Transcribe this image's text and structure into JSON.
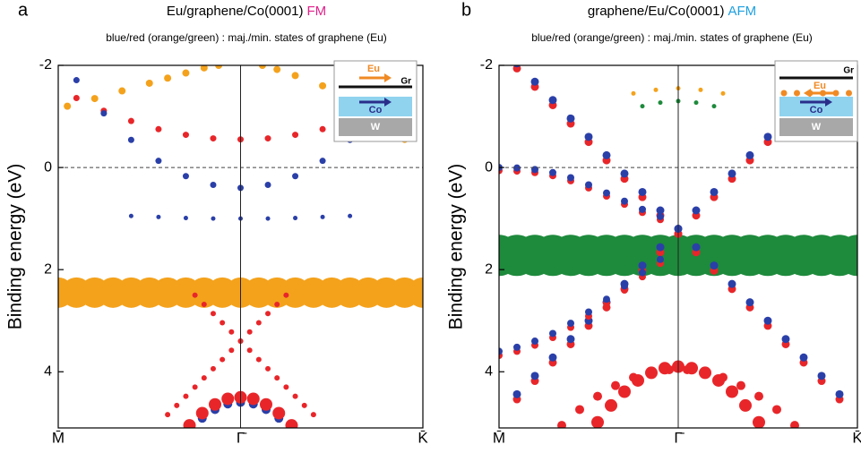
{
  "chart_data": [
    {
      "type": "scatter",
      "panel_label": "a",
      "title": "Eu/graphene/Co(0001)",
      "title_tag": "FM",
      "title_tag_color": "#e0208a",
      "subtitle": "blue/red (orange/green) : maj./min. states of graphene (Eu)",
      "y_label": "Binding energy (eV)",
      "ylim": [
        -2,
        5.1
      ],
      "yticks": [
        -2,
        0,
        2,
        4
      ],
      "y_inverted": true,
      "zero_line": true,
      "xlim": [
        0,
        2
      ],
      "xticks": [
        {
          "value": 0,
          "label": "M̄"
        },
        {
          "value": 1,
          "label": "Γ̄"
        },
        {
          "value": 2,
          "label": "K̄"
        }
      ],
      "inset": {
        "eu": "Eu",
        "gr": "Gr",
        "co": "Co",
        "w": "W"
      },
      "series": [
        {
          "color": "#f4a21c",
          "size": 17,
          "x": [
            0,
            0.1,
            0.2,
            0.3,
            0.4,
            0.5,
            0.6,
            0.7,
            0.8,
            0.9,
            1.0,
            1.1,
            1.2,
            1.3,
            1.4,
            1.5,
            1.6,
            1.7,
            1.8,
            1.9,
            2.0
          ],
          "values": [
            2.45,
            2.45,
            2.45,
            2.45,
            2.45,
            2.45,
            2.45,
            2.45,
            2.45,
            2.45,
            2.45,
            2.45,
            2.45,
            2.45,
            2.45,
            2.45,
            2.45,
            2.45,
            2.45,
            2.45,
            2.45
          ]
        },
        {
          "color": "#f4a21c",
          "size": 4,
          "x": [
            0.05,
            0.2,
            0.35,
            0.5,
            0.6,
            0.7,
            0.8,
            0.88
          ],
          "values": [
            -1.2,
            -1.35,
            -1.5,
            -1.65,
            -1.75,
            -1.85,
            -1.95,
            -2.0
          ]
        },
        {
          "color": "#f4a21c",
          "size": 4,
          "x": [
            1.12,
            1.2,
            1.3,
            1.45,
            1.6,
            1.75,
            1.9
          ],
          "values": [
            -2.0,
            -1.92,
            -1.8,
            -1.6,
            -1.3,
            -0.95,
            -0.55
          ]
        },
        {
          "color": "#e8262a",
          "size": 3.5,
          "x": [
            0.1,
            0.25,
            0.4,
            0.55,
            0.7,
            0.85,
            1.0,
            1.15,
            1.3,
            1.45,
            1.6,
            1.75,
            1.9
          ],
          "values": [
            -1.36,
            -1.11,
            -0.91,
            -0.75,
            -0.64,
            -0.57,
            -0.55,
            -0.57,
            -0.64,
            -0.75,
            -0.91,
            -1.11,
            -1.36
          ]
        },
        {
          "color": "#2a3fa8",
          "size": 3.5,
          "x": [
            0.1,
            0.25,
            0.4,
            0.55,
            0.7,
            0.85,
            1.0,
            1.15,
            1.3,
            1.45,
            1.6,
            1.75,
            1.9
          ],
          "values": [
            -1.71,
            -1.06,
            -0.54,
            -0.13,
            0.17,
            0.34,
            0.4,
            0.34,
            0.17,
            -0.13,
            -0.54,
            -1.06,
            -1.71
          ]
        },
        {
          "color": "#2a3fa8",
          "size": 2.5,
          "x": [
            0.4,
            0.55,
            0.7,
            0.85,
            1.0,
            1.15,
            1.3,
            1.45,
            1.6
          ],
          "values": [
            0.95,
            0.97,
            0.99,
            1.0,
            1.0,
            1.0,
            0.99,
            0.97,
            0.95
          ]
        },
        {
          "color": "#e8262a",
          "size": 3,
          "x": [
            0.75,
            0.8,
            0.85,
            0.9,
            0.95,
            1.0,
            1.05,
            1.1,
            1.15,
            1.2,
            1.25,
            1.3,
            1.35,
            1.4
          ],
          "values": [
            2.5,
            2.68,
            2.86,
            3.04,
            3.22,
            3.4,
            3.58,
            3.76,
            3.94,
            4.12,
            4.3,
            4.48,
            4.66,
            4.84
          ]
        },
        {
          "color": "#e8262a",
          "size": 3,
          "x": [
            0.6,
            0.65,
            0.7,
            0.75,
            0.8,
            0.85,
            0.9,
            0.95,
            1.0,
            1.05,
            1.1,
            1.15,
            1.2,
            1.25
          ],
          "values": [
            4.84,
            4.66,
            4.48,
            4.3,
            4.12,
            3.94,
            3.76,
            3.58,
            3.4,
            3.22,
            3.04,
            2.86,
            2.68,
            2.5
          ]
        },
        {
          "color": "#2a3fa8",
          "size": 5,
          "x": [
            0.79,
            0.86,
            0.93,
            1.0,
            1.07,
            1.14,
            1.21
          ],
          "values": [
            4.91,
            4.74,
            4.63,
            4.6,
            4.63,
            4.74,
            4.91
          ]
        },
        {
          "color": "#e8262a",
          "size": 7,
          "x": [
            0.72,
            0.79,
            0.86,
            0.93,
            1.0,
            1.07,
            1.14,
            1.21,
            1.28
          ],
          "values": [
            5.05,
            4.81,
            4.64,
            4.53,
            4.5,
            4.53,
            4.64,
            4.81,
            5.05
          ]
        }
      ]
    },
    {
      "type": "scatter",
      "panel_label": "b",
      "title": "graphene/Eu/Co(0001)",
      "title_tag": "AFM",
      "title_tag_color": "#1ea0e0",
      "subtitle": "blue/red (orange/green) : maj./min. states of graphene (Eu)",
      "y_label": "Binding energy (eV)",
      "ylim": [
        -2,
        5.1
      ],
      "yticks": [
        -2,
        0,
        2,
        4
      ],
      "y_inverted": true,
      "zero_line": true,
      "xlim": [
        0,
        2
      ],
      "xticks": [
        {
          "value": 0,
          "label": "M̄"
        },
        {
          "value": 1,
          "label": "Γ̄"
        },
        {
          "value": 2,
          "label": "K̄"
        }
      ],
      "inset": {
        "eu": "Eu",
        "gr": "Gr",
        "co": "Co",
        "w": "W"
      },
      "series": [
        {
          "color": "#1e8a3c",
          "size": 23,
          "x": [
            0,
            0.1,
            0.2,
            0.3,
            0.4,
            0.5,
            0.6,
            0.7,
            0.8,
            0.9,
            1.0,
            1.1,
            1.2,
            1.3,
            1.4,
            1.5,
            1.6,
            1.7,
            1.8,
            1.9,
            2.0
          ],
          "values": [
            1.72,
            1.72,
            1.72,
            1.72,
            1.72,
            1.72,
            1.72,
            1.72,
            1.72,
            1.72,
            1.72,
            1.72,
            1.72,
            1.72,
            1.72,
            1.72,
            1.72,
            1.72,
            1.72,
            1.72,
            1.72
          ]
        },
        {
          "color": "#1e8a3c",
          "size": 2.5,
          "x": [
            0.8,
            0.9,
            1.0,
            1.1,
            1.2
          ],
          "values": [
            -1.2,
            -1.27,
            -1.3,
            -1.27,
            -1.2
          ]
        },
        {
          "color": "#f4a21c",
          "size": 2.5,
          "x": [
            0.75,
            0.875,
            1.0,
            1.125,
            1.25
          ],
          "values": [
            -1.45,
            -1.52,
            -1.55,
            -1.52,
            -1.45
          ]
        },
        {
          "color": "#e8262a",
          "size": 4.5,
          "x": [
            0.1,
            0.2,
            0.3,
            0.4,
            0.5,
            0.6,
            0.7,
            0.8,
            0.9,
            1.0,
            1.1,
            1.2,
            1.3,
            1.4,
            1.5,
            1.6,
            1.7,
            1.8,
            1.9
          ],
          "values": [
            -1.94,
            -1.58,
            -1.22,
            -0.86,
            -0.5,
            -0.14,
            0.22,
            0.58,
            0.94,
            1.3,
            1.66,
            2.02,
            2.38,
            2.74,
            3.1,
            3.46,
            3.82,
            4.18,
            4.54
          ]
        },
        {
          "color": "#2a3fa8",
          "size": 4.5,
          "x": [
            0.1,
            0.2,
            0.3,
            0.4,
            0.5,
            0.6,
            0.7,
            0.8,
            0.9,
            1.0,
            1.1,
            1.2,
            1.3,
            1.4,
            1.5,
            1.6,
            1.7,
            1.8,
            1.9
          ],
          "values": [
            -2.04,
            -1.68,
            -1.32,
            -0.96,
            -0.6,
            -0.24,
            0.12,
            0.48,
            0.84,
            1.2,
            1.56,
            1.92,
            2.28,
            2.64,
            3.0,
            3.36,
            3.72,
            4.08,
            4.44
          ]
        },
        {
          "color": "#e8262a",
          "size": 4.5,
          "x": [
            0.1,
            0.2,
            0.3,
            0.4,
            0.5,
            0.6,
            0.7,
            0.8,
            0.9,
            1.0,
            1.1,
            1.2,
            1.3,
            1.4,
            1.5,
            1.6,
            1.7,
            1.8,
            1.9
          ],
          "values": [
            4.54,
            4.18,
            3.82,
            3.46,
            3.1,
            2.74,
            2.38,
            2.02,
            1.66,
            1.3,
            0.94,
            0.58,
            0.22,
            -0.14,
            -0.5,
            -0.86,
            -1.22,
            -1.58,
            -1.94
          ]
        },
        {
          "color": "#2a3fa8",
          "size": 4.5,
          "x": [
            0.1,
            0.2,
            0.3,
            0.4,
            0.5,
            0.6,
            0.7,
            0.8,
            0.9,
            1.0,
            1.1,
            1.2,
            1.3,
            1.4,
            1.5,
            1.6,
            1.7,
            1.8,
            1.9
          ],
          "values": [
            4.44,
            4.08,
            3.72,
            3.36,
            3.0,
            2.64,
            2.28,
            1.92,
            1.56,
            1.2,
            0.84,
            0.48,
            0.12,
            -0.24,
            -0.6,
            -0.96,
            -1.32,
            -1.68,
            -2.04
          ]
        },
        {
          "color": "#e8262a",
          "size": 4,
          "x": [
            0,
            0.1,
            0.2,
            0.3,
            0.4,
            0.5,
            0.6,
            0.7,
            0.8,
            0.9
          ],
          "values": [
            0.06,
            0.07,
            0.1,
            0.16,
            0.26,
            0.4,
            0.56,
            0.72,
            0.88,
            1.02
          ]
        },
        {
          "color": "#2a3fa8",
          "size": 4,
          "x": [
            0,
            0.1,
            0.2,
            0.3,
            0.4,
            0.5,
            0.6,
            0.7,
            0.8,
            0.9
          ],
          "values": [
            0,
            0.01,
            0.04,
            0.1,
            0.2,
            0.34,
            0.5,
            0.66,
            0.82,
            0.96
          ]
        },
        {
          "color": "#e8262a",
          "size": 4,
          "x": [
            0,
            0.1,
            0.2,
            0.3,
            0.4,
            0.5,
            0.6,
            0.7,
            0.8,
            0.9
          ],
          "values": [
            3.68,
            3.6,
            3.48,
            3.33,
            3.13,
            2.91,
            2.66,
            2.4,
            2.14,
            1.88
          ]
        },
        {
          "color": "#2a3fa8",
          "size": 4,
          "x": [
            0,
            0.1,
            0.2,
            0.3,
            0.4,
            0.5,
            0.6,
            0.7,
            0.8,
            0.9
          ],
          "values": [
            3.6,
            3.52,
            3.4,
            3.25,
            3.05,
            2.83,
            2.58,
            2.32,
            2.06,
            1.8
          ]
        },
        {
          "color": "#e8262a",
          "size": 5,
          "x": [
            0.35,
            0.45,
            0.55,
            0.65,
            0.75,
            0.85,
            0.95,
            1.05,
            1.15,
            1.25,
            1.35,
            1.45,
            1.55,
            1.65
          ],
          "values": [
            5.05,
            4.74,
            4.48,
            4.27,
            4.11,
            4.01,
            3.96,
            3.96,
            4.01,
            4.11,
            4.27,
            4.48,
            4.74,
            5.05
          ]
        },
        {
          "color": "#e8262a",
          "size": 7,
          "x": [
            0.55,
            0.625,
            0.7,
            0.775,
            0.85,
            0.925,
            1.0,
            1.075,
            1.15,
            1.225,
            1.3,
            1.375,
            1.45
          ],
          "values": [
            4.99,
            4.66,
            4.39,
            4.17,
            4.02,
            3.93,
            3.9,
            3.93,
            4.02,
            4.17,
            4.39,
            4.66,
            4.99
          ]
        }
      ]
    }
  ]
}
